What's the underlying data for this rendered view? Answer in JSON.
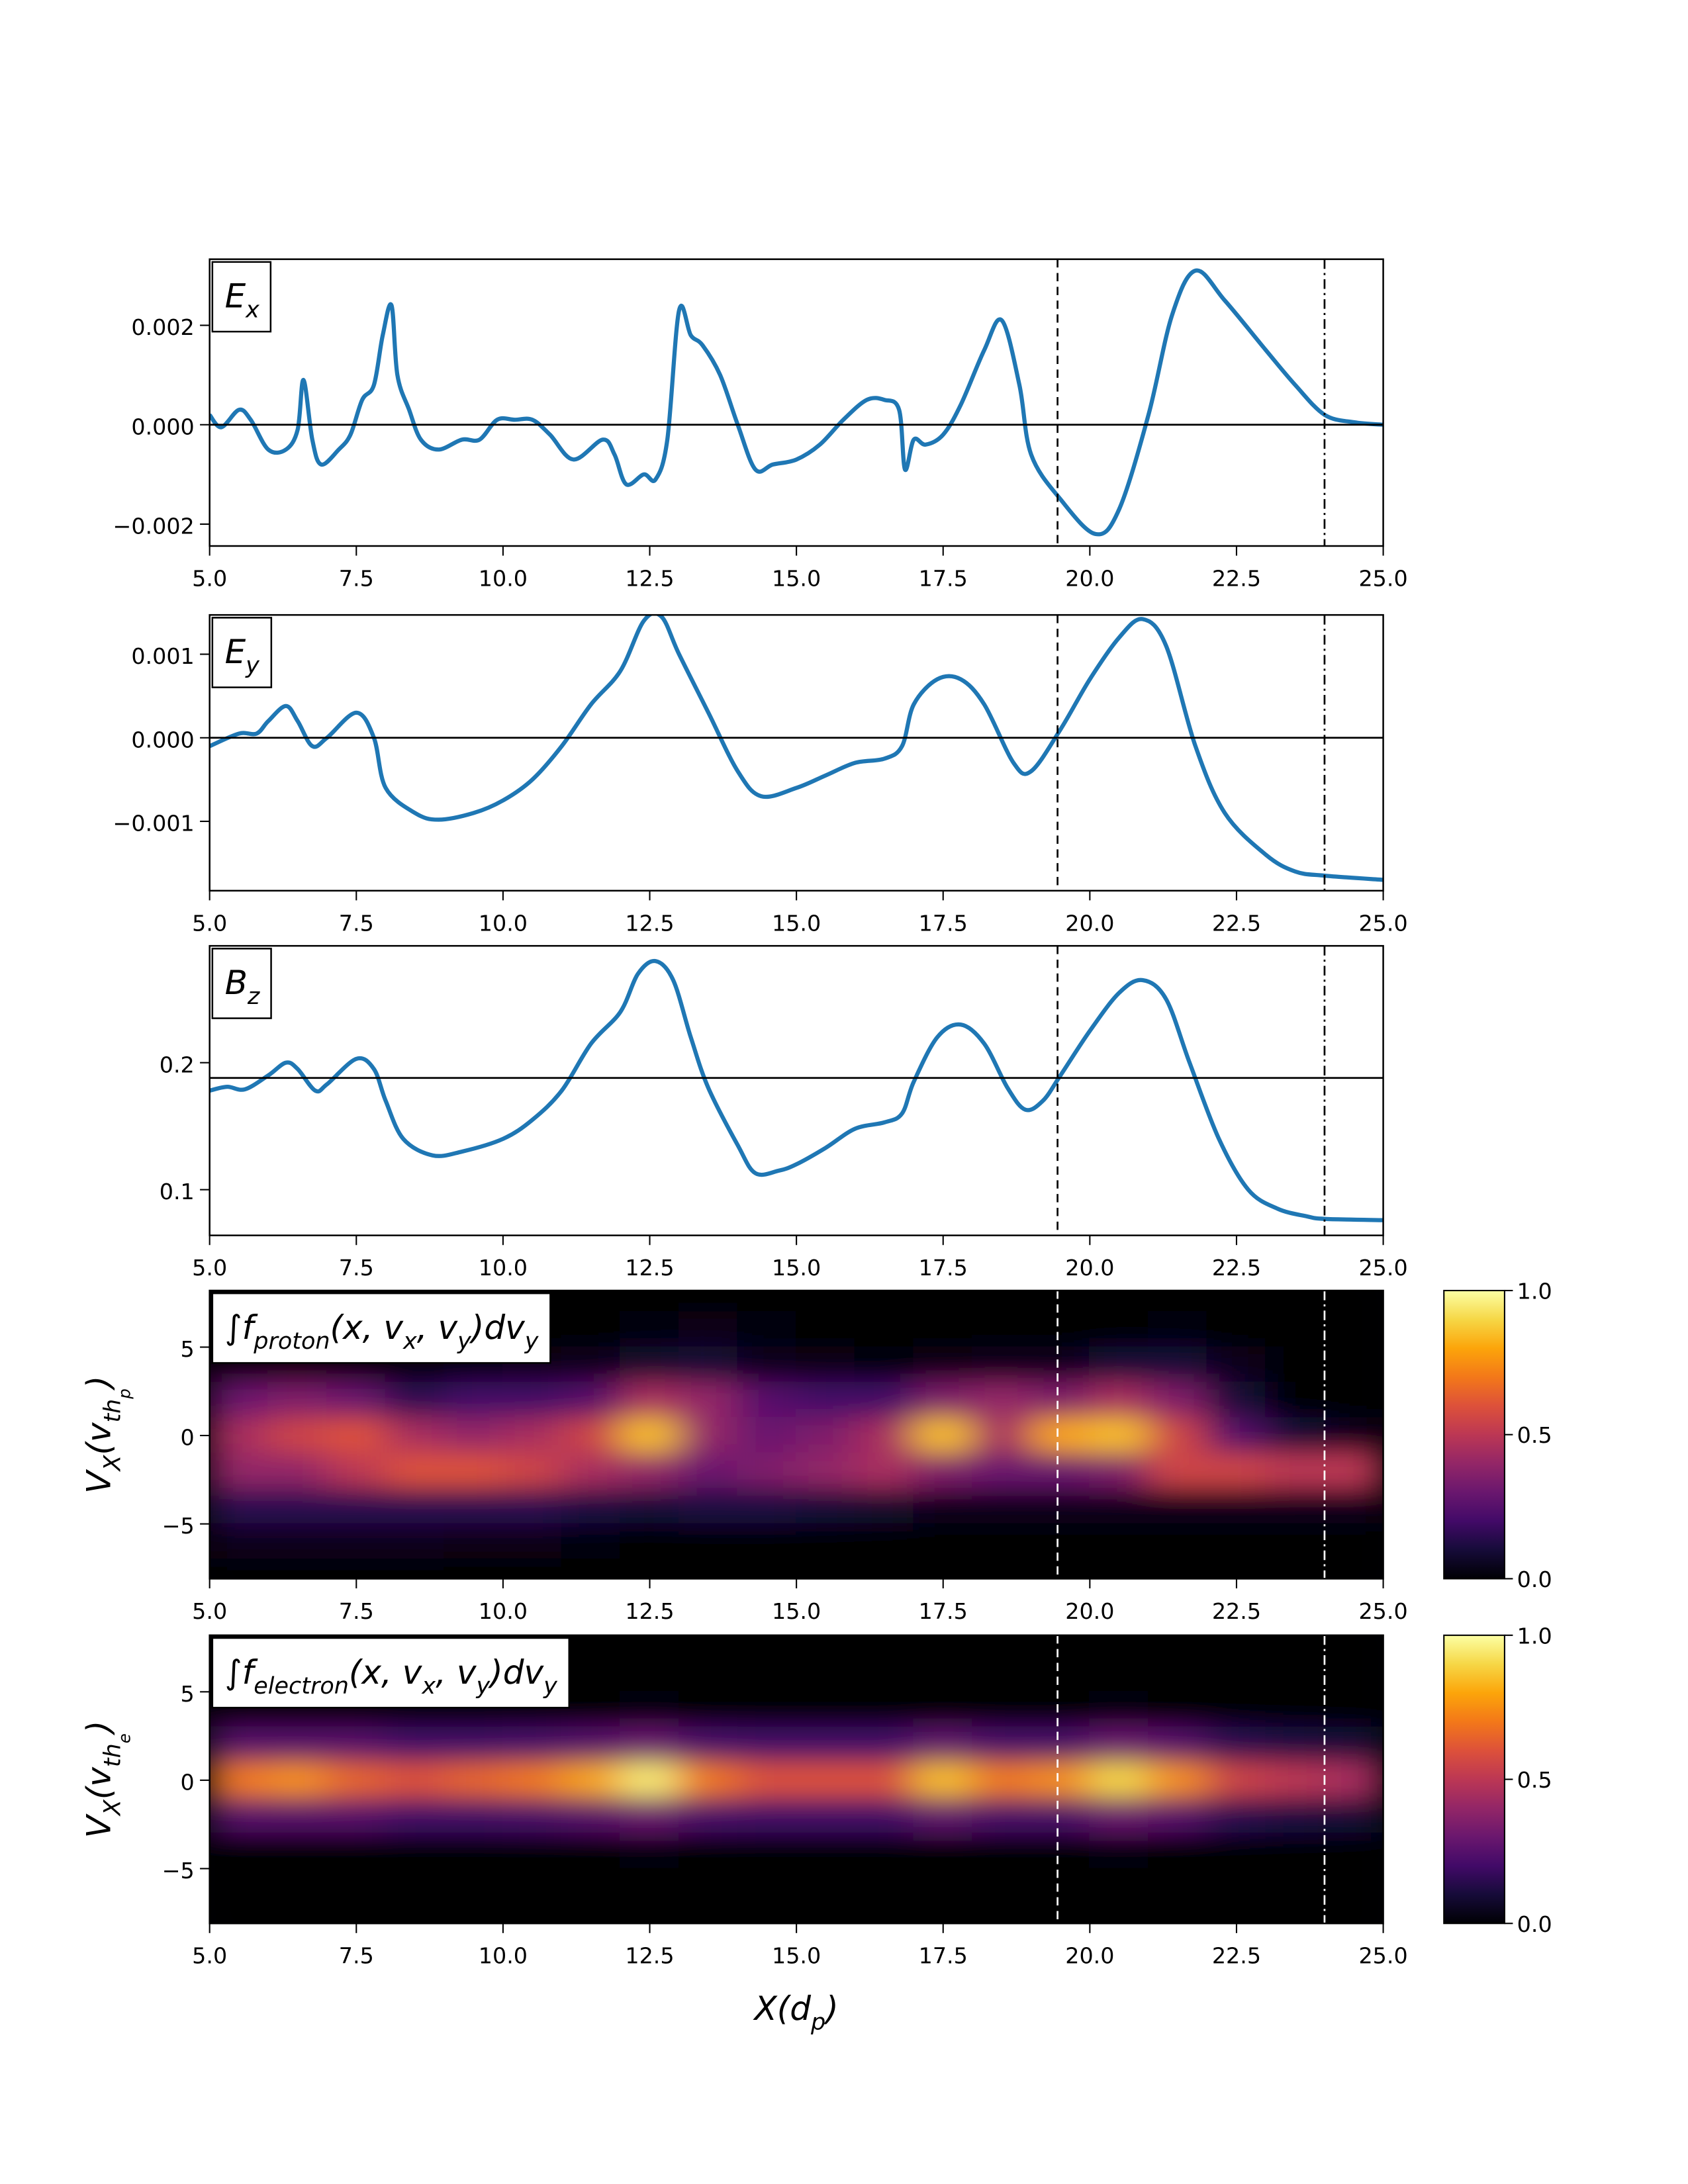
{
  "chart_data": [
    {
      "type": "line",
      "label": [
        {
          "text": "E"
        },
        {
          "text": "x",
          "sub": 1
        }
      ],
      "x": [
        5.0,
        5.2,
        5.5,
        5.7,
        6.0,
        6.3,
        6.5,
        6.6,
        6.75,
        6.9,
        7.2,
        7.4,
        7.6,
        7.8,
        7.95,
        8.1,
        8.2,
        8.4,
        8.6,
        8.9,
        9.3,
        9.6,
        9.9,
        10.2,
        10.5,
        10.8,
        11.2,
        11.7,
        11.9,
        12.1,
        12.4,
        12.6,
        12.8,
        13.0,
        13.2,
        13.4,
        13.7,
        14.0,
        14.3,
        14.6,
        15.0,
        15.4,
        15.8,
        16.2,
        16.5,
        16.75,
        16.85,
        17.0,
        17.2,
        17.5,
        17.8,
        18.2,
        18.5,
        18.8,
        19.0,
        19.5,
        20.1,
        20.5,
        21.0,
        21.4,
        21.8,
        22.3,
        23.0,
        23.5,
        24.0,
        24.5,
        25.0
      ],
      "series": [
        {
          "color": "#1f77b4",
          "values": [
            0.0002,
            -5e-05,
            0.0003,
            0.0001,
            -0.0005,
            -0.0005,
            -0.0001,
            0.0009,
            -0.0003,
            -0.0008,
            -0.0005,
            -0.0002,
            0.0005,
            0.0008,
            0.0018,
            0.0024,
            0.001,
            0.0003,
            -0.0003,
            -0.0005,
            -0.0003,
            -0.0003,
            0.0001,
            0.0001,
            0.0001,
            -0.0002,
            -0.0007,
            -0.0003,
            -0.0006,
            -0.0012,
            -0.001,
            -0.0011,
            -0.0003,
            0.0023,
            0.0018,
            0.0016,
            0.001,
            0.0,
            -0.0009,
            -0.0008,
            -0.0007,
            -0.0004,
            0.0001,
            0.0005,
            0.0005,
            0.0003,
            -0.0009,
            -0.0003,
            -0.0004,
            -0.0002,
            0.0004,
            0.0015,
            0.0021,
            0.0008,
            -0.0006,
            -0.0015,
            -0.0022,
            -0.0017,
            0.0002,
            0.0022,
            0.0031,
            0.0025,
            0.0015,
            0.0008,
            0.0002,
            5e-05,
            0.0
          ]
        }
      ],
      "xlim": [
        5,
        25
      ],
      "ylim": [
        -0.00244,
        0.00333
      ],
      "xticks": [
        {
          "value": 5,
          "label": "5.0"
        },
        7.5,
        {
          "value": 10,
          "label": "10.0"
        },
        12.5,
        {
          "value": 15,
          "label": "15.0"
        },
        17.5,
        {
          "value": 20,
          "label": "20.0"
        },
        22.5,
        {
          "value": 25,
          "label": "25.0"
        }
      ],
      "yticks": [
        {
          "value": -0.002,
          "label": "−0.002"
        },
        {
          "value": 0,
          "label": "0.000"
        },
        0.002
      ],
      "hline": 0,
      "vlines": [
        19.45,
        24.0
      ],
      "vline_styles": [
        "dashed",
        "dashdot"
      ],
      "vline_color": "#000000"
    },
    {
      "type": "line",
      "label": [
        {
          "text": "E"
        },
        {
          "text": "y",
          "sub": 1
        }
      ],
      "x": [
        5.0,
        5.5,
        5.8,
        6.0,
        6.3,
        6.5,
        6.75,
        7.0,
        7.5,
        7.8,
        8.0,
        8.5,
        8.9,
        9.5,
        10.0,
        10.5,
        11.0,
        11.5,
        12.0,
        12.4,
        12.7,
        13.0,
        13.5,
        14.0,
        14.4,
        15.0,
        15.5,
        16.0,
        16.5,
        16.8,
        17.0,
        17.4,
        17.8,
        18.2,
        18.7,
        19.0,
        19.5,
        20.0,
        20.5,
        20.9,
        21.3,
        21.8,
        22.3,
        23.0,
        23.5,
        24.0,
        25.0
      ],
      "series": [
        {
          "color": "#1f77b4",
          "values": [
            -0.0001,
            5e-05,
            5e-05,
            0.0002,
            0.00038,
            0.0002,
            -0.0001,
            0.0,
            0.0003,
            0.0,
            -0.0006,
            -0.0009,
            -0.00098,
            -0.0009,
            -0.00075,
            -0.0005,
            -0.0001,
            0.0004,
            0.0008,
            0.0014,
            0.00145,
            0.001,
            0.0003,
            -0.0004,
            -0.0007,
            -0.0006,
            -0.00045,
            -0.0003,
            -0.00025,
            -0.0001,
            0.0004,
            0.0007,
            0.0007,
            0.0004,
            -0.0003,
            -0.0004,
            0.0001,
            0.0007,
            0.0012,
            0.00142,
            0.0011,
            -0.0001,
            -0.0009,
            -0.0014,
            -0.0016,
            -0.00165,
            -0.0017
          ]
        }
      ],
      "xlim": [
        5,
        25
      ],
      "ylim": [
        -0.00183,
        0.00147
      ],
      "xticks": [
        {
          "value": 5,
          "label": "5.0"
        },
        7.5,
        {
          "value": 10,
          "label": "10.0"
        },
        12.5,
        {
          "value": 15,
          "label": "15.0"
        },
        17.5,
        {
          "value": 20,
          "label": "20.0"
        },
        22.5,
        {
          "value": 25,
          "label": "25.0"
        }
      ],
      "yticks": [
        {
          "value": -0.001,
          "label": "−0.001"
        },
        {
          "value": 0,
          "label": "0.000"
        },
        0.001
      ],
      "hline": 0,
      "vlines": [
        19.45,
        24.0
      ],
      "vline_styles": [
        "dashed",
        "dashdot"
      ],
      "vline_color": "#000000"
    },
    {
      "type": "line",
      "label": [
        {
          "text": "B"
        },
        {
          "text": "z",
          "sub": 1
        }
      ],
      "x": [
        5.0,
        5.3,
        5.6,
        6.0,
        6.3,
        6.5,
        6.8,
        7.0,
        7.5,
        7.8,
        8.0,
        8.3,
        8.8,
        9.3,
        10.0,
        10.5,
        11.0,
        11.5,
        12.0,
        12.3,
        12.6,
        12.9,
        13.2,
        13.5,
        14.0,
        14.3,
        14.7,
        15.0,
        15.5,
        16.0,
        16.5,
        16.8,
        17.0,
        17.4,
        17.8,
        18.2,
        18.6,
        18.9,
        19.2,
        19.5,
        20.0,
        20.5,
        20.9,
        21.3,
        21.7,
        22.2,
        22.7,
        23.2,
        23.7,
        24.0,
        25.0
      ],
      "series": [
        {
          "color": "#1f77b4",
          "values": [
            0.178,
            0.181,
            0.179,
            0.19,
            0.2,
            0.195,
            0.178,
            0.183,
            0.203,
            0.195,
            0.17,
            0.14,
            0.127,
            0.13,
            0.14,
            0.155,
            0.178,
            0.215,
            0.24,
            0.27,
            0.28,
            0.265,
            0.22,
            0.18,
            0.135,
            0.113,
            0.115,
            0.12,
            0.133,
            0.148,
            0.153,
            0.16,
            0.185,
            0.22,
            0.23,
            0.215,
            0.18,
            0.163,
            0.17,
            0.19,
            0.225,
            0.255,
            0.265,
            0.25,
            0.2,
            0.14,
            0.1,
            0.085,
            0.079,
            0.077,
            0.076
          ]
        }
      ],
      "xlim": [
        5,
        25
      ],
      "ylim": [
        0.064,
        0.292
      ],
      "xticks": [
        {
          "value": 5,
          "label": "5.0"
        },
        7.5,
        {
          "value": 10,
          "label": "10.0"
        },
        12.5,
        {
          "value": 15,
          "label": "15.0"
        },
        17.5,
        {
          "value": 20,
          "label": "20.0"
        },
        22.5,
        {
          "value": 25,
          "label": "25.0"
        }
      ],
      "yticks": [
        0.1,
        0.2
      ],
      "hline": 0.188,
      "vlines": [
        19.45,
        24.0
      ],
      "vline_styles": [
        "dashed",
        "dashdot"
      ],
      "vline_color": "#000000"
    },
    {
      "type": "heatmap",
      "label": [
        {
          "text": "∫f"
        },
        {
          "text": "proton",
          "sub": 1
        },
        {
          "text": "(x, v"
        },
        {
          "text": "x",
          "sub": 1
        },
        {
          "text": ", v"
        },
        {
          "text": "y",
          "sub": 1
        },
        {
          "text": ")dv"
        },
        {
          "text": "y",
          "sub": 1
        }
      ],
      "ylabel": [
        {
          "text": "V"
        },
        {
          "text": "X",
          "sub": 1
        },
        {
          "text": "(v"
        },
        {
          "text": "th",
          "sub": 1
        },
        {
          "text": "p",
          "sub": 2
        },
        {
          "text": ")"
        }
      ],
      "x": [
        5.5,
        6.5,
        7.5,
        8.5,
        9.5,
        10.5,
        11.5,
        12.5,
        13.5,
        14.5,
        15.5,
        16.5,
        17.5,
        18.5,
        19.5,
        20.5,
        21.5,
        22.5,
        23.5,
        24.5
      ],
      "y": [
        8,
        6,
        4,
        2,
        0,
        -2,
        -4,
        -6,
        -8
      ],
      "z": [
        [
          0,
          0,
          0,
          0,
          0,
          0,
          0,
          0,
          0,
          0,
          0,
          0,
          0,
          0,
          0,
          0,
          0,
          0,
          0,
          0
        ],
        [
          0,
          0,
          0,
          0,
          0,
          0,
          0,
          0.02,
          0.03,
          0.02,
          0,
          0,
          0,
          0,
          0,
          0,
          0.02,
          0,
          0,
          0
        ],
        [
          0,
          0,
          0,
          0,
          0.02,
          0.03,
          0.05,
          0.08,
          0.1,
          0.05,
          0.03,
          0.02,
          0.03,
          0.05,
          0.05,
          0.1,
          0.1,
          0.05,
          0,
          0
        ],
        [
          0.3,
          0.35,
          0.3,
          0.15,
          0.2,
          0.2,
          0.25,
          0.45,
          0.4,
          0.25,
          0.2,
          0.2,
          0.35,
          0.4,
          0.35,
          0.45,
          0.35,
          0.1,
          0,
          0
        ],
        [
          0.45,
          0.55,
          0.6,
          0.45,
          0.4,
          0.45,
          0.55,
          0.85,
          0.4,
          0.3,
          0.35,
          0.45,
          0.85,
          0.45,
          0.8,
          0.85,
          0.55,
          0.25,
          0.1,
          0.05
        ],
        [
          0.4,
          0.4,
          0.5,
          0.6,
          0.6,
          0.55,
          0.45,
          0.4,
          0.3,
          0.35,
          0.4,
          0.45,
          0.35,
          0.3,
          0.3,
          0.35,
          0.55,
          0.55,
          0.5,
          0.5
        ],
        [
          0.15,
          0.15,
          0.15,
          0.15,
          0.15,
          0.15,
          0.12,
          0.1,
          0.12,
          0.12,
          0.1,
          0.08,
          0.05,
          0.05,
          0.05,
          0.05,
          0.05,
          0.05,
          0.05,
          0.05
        ],
        [
          0.05,
          0.05,
          0.05,
          0.05,
          0.03,
          0.03,
          0.02,
          0,
          0,
          0,
          0,
          0,
          0,
          0,
          0,
          0,
          0,
          0,
          0,
          0
        ],
        [
          0,
          0,
          0,
          0,
          0,
          0,
          0,
          0,
          0,
          0,
          0,
          0,
          0,
          0,
          0,
          0,
          0,
          0,
          0,
          0
        ]
      ],
      "xlim": [
        5,
        25
      ],
      "ylim": [
        -8.1,
        8.2
      ],
      "xticks": [
        {
          "value": 5,
          "label": "5.0"
        },
        7.5,
        {
          "value": 10,
          "label": "10.0"
        },
        12.5,
        {
          "value": 15,
          "label": "15.0"
        },
        17.5,
        {
          "value": 20,
          "label": "20.0"
        },
        22.5,
        {
          "value": 25,
          "label": "25.0"
        }
      ],
      "yticks": [
        {
          "value": -5,
          "label": "−5"
        },
        0,
        5
      ],
      "clim": [
        0,
        1
      ],
      "cticks": [
        {
          "value": 0,
          "label": "0.0"
        },
        0.5,
        {
          "value": 1,
          "label": "1.0"
        }
      ],
      "colormap": [
        "#000004",
        "#160b39",
        "#420a68",
        "#6a176e",
        "#932667",
        "#bc3754",
        "#dd513a",
        "#f37819",
        "#fca50a",
        "#f6d746",
        "#fcffa4"
      ],
      "vlines": [
        19.45,
        24.0
      ],
      "vline_styles": [
        "dashed",
        "dashdot"
      ],
      "vline_color": "#ffffff"
    },
    {
      "type": "heatmap",
      "label": [
        {
          "text": "∫f"
        },
        {
          "text": "electron",
          "sub": 1
        },
        {
          "text": "(x, v"
        },
        {
          "text": "x",
          "sub": 1
        },
        {
          "text": ", v"
        },
        {
          "text": "y",
          "sub": 1
        },
        {
          "text": ")dv"
        },
        {
          "text": "y",
          "sub": 1
        }
      ],
      "ylabel": [
        {
          "text": "V"
        },
        {
          "text": "X",
          "sub": 1
        },
        {
          "text": "(v"
        },
        {
          "text": "th",
          "sub": 1
        },
        {
          "text": "e",
          "sub": 2
        },
        {
          "text": ")"
        }
      ],
      "xlabel": [
        {
          "text": "X(d"
        },
        {
          "text": "p",
          "sub": 1
        },
        {
          "text": ")"
        }
      ],
      "x": [
        5.5,
        6.5,
        7.5,
        8.5,
        9.5,
        10.5,
        11.5,
        12.5,
        13.5,
        14.5,
        15.5,
        16.5,
        17.5,
        18.5,
        19.5,
        20.5,
        21.5,
        22.5,
        23.5,
        24.5
      ],
      "y": [
        8,
        6,
        4,
        2,
        0,
        -2,
        -4,
        -6,
        -8
      ],
      "z": [
        [
          0,
          0,
          0,
          0,
          0,
          0,
          0,
          0,
          0,
          0,
          0,
          0,
          0,
          0,
          0,
          0,
          0,
          0,
          0,
          0
        ],
        [
          0,
          0,
          0,
          0,
          0,
          0,
          0,
          0,
          0,
          0,
          0,
          0,
          0,
          0,
          0,
          0,
          0,
          0,
          0,
          0
        ],
        [
          0,
          0,
          0,
          0,
          0,
          0,
          0,
          0.02,
          0,
          0,
          0,
          0,
          0,
          0,
          0,
          0.02,
          0,
          0,
          0,
          0
        ],
        [
          0.25,
          0.25,
          0.25,
          0.2,
          0.2,
          0.22,
          0.25,
          0.3,
          0.22,
          0.2,
          0.2,
          0.2,
          0.28,
          0.22,
          0.22,
          0.3,
          0.25,
          0.15,
          0.12,
          0.1
        ],
        [
          0.7,
          0.75,
          0.65,
          0.6,
          0.65,
          0.7,
          0.8,
          0.95,
          0.7,
          0.6,
          0.6,
          0.6,
          0.85,
          0.7,
          0.75,
          0.9,
          0.75,
          0.55,
          0.5,
          0.45
        ],
        [
          0.25,
          0.25,
          0.25,
          0.2,
          0.2,
          0.22,
          0.25,
          0.3,
          0.22,
          0.2,
          0.2,
          0.2,
          0.28,
          0.22,
          0.22,
          0.3,
          0.25,
          0.15,
          0.12,
          0.1
        ],
        [
          0,
          0,
          0,
          0,
          0,
          0,
          0,
          0.02,
          0,
          0,
          0,
          0,
          0,
          0,
          0,
          0.02,
          0,
          0,
          0,
          0
        ],
        [
          0,
          0,
          0,
          0,
          0,
          0,
          0,
          0,
          0,
          0,
          0,
          0,
          0,
          0,
          0,
          0,
          0,
          0,
          0,
          0
        ],
        [
          0,
          0,
          0,
          0,
          0,
          0,
          0,
          0,
          0,
          0,
          0,
          0,
          0,
          0,
          0,
          0,
          0,
          0,
          0,
          0
        ]
      ],
      "xlim": [
        5,
        25
      ],
      "ylim": [
        -8.1,
        8.2
      ],
      "xticks": [
        {
          "value": 5,
          "label": "5.0"
        },
        7.5,
        {
          "value": 10,
          "label": "10.0"
        },
        12.5,
        {
          "value": 15,
          "label": "15.0"
        },
        17.5,
        {
          "value": 20,
          "label": "20.0"
        },
        22.5,
        {
          "value": 25,
          "label": "25.0"
        }
      ],
      "yticks": [
        {
          "value": -5,
          "label": "−5"
        },
        0,
        5
      ],
      "clim": [
        0,
        1
      ],
      "cticks": [
        {
          "value": 0,
          "label": "0.0"
        },
        0.5,
        {
          "value": 1,
          "label": "1.0"
        }
      ],
      "colormap": [
        "#000004",
        "#160b39",
        "#420a68",
        "#6a176e",
        "#932667",
        "#bc3754",
        "#dd513a",
        "#f37819",
        "#fca50a",
        "#f6d746",
        "#fcffa4"
      ],
      "vlines": [
        19.45,
        24.0
      ],
      "vline_styles": [
        "dashed",
        "dashdot"
      ],
      "vline_color": "#ffffff"
    }
  ]
}
